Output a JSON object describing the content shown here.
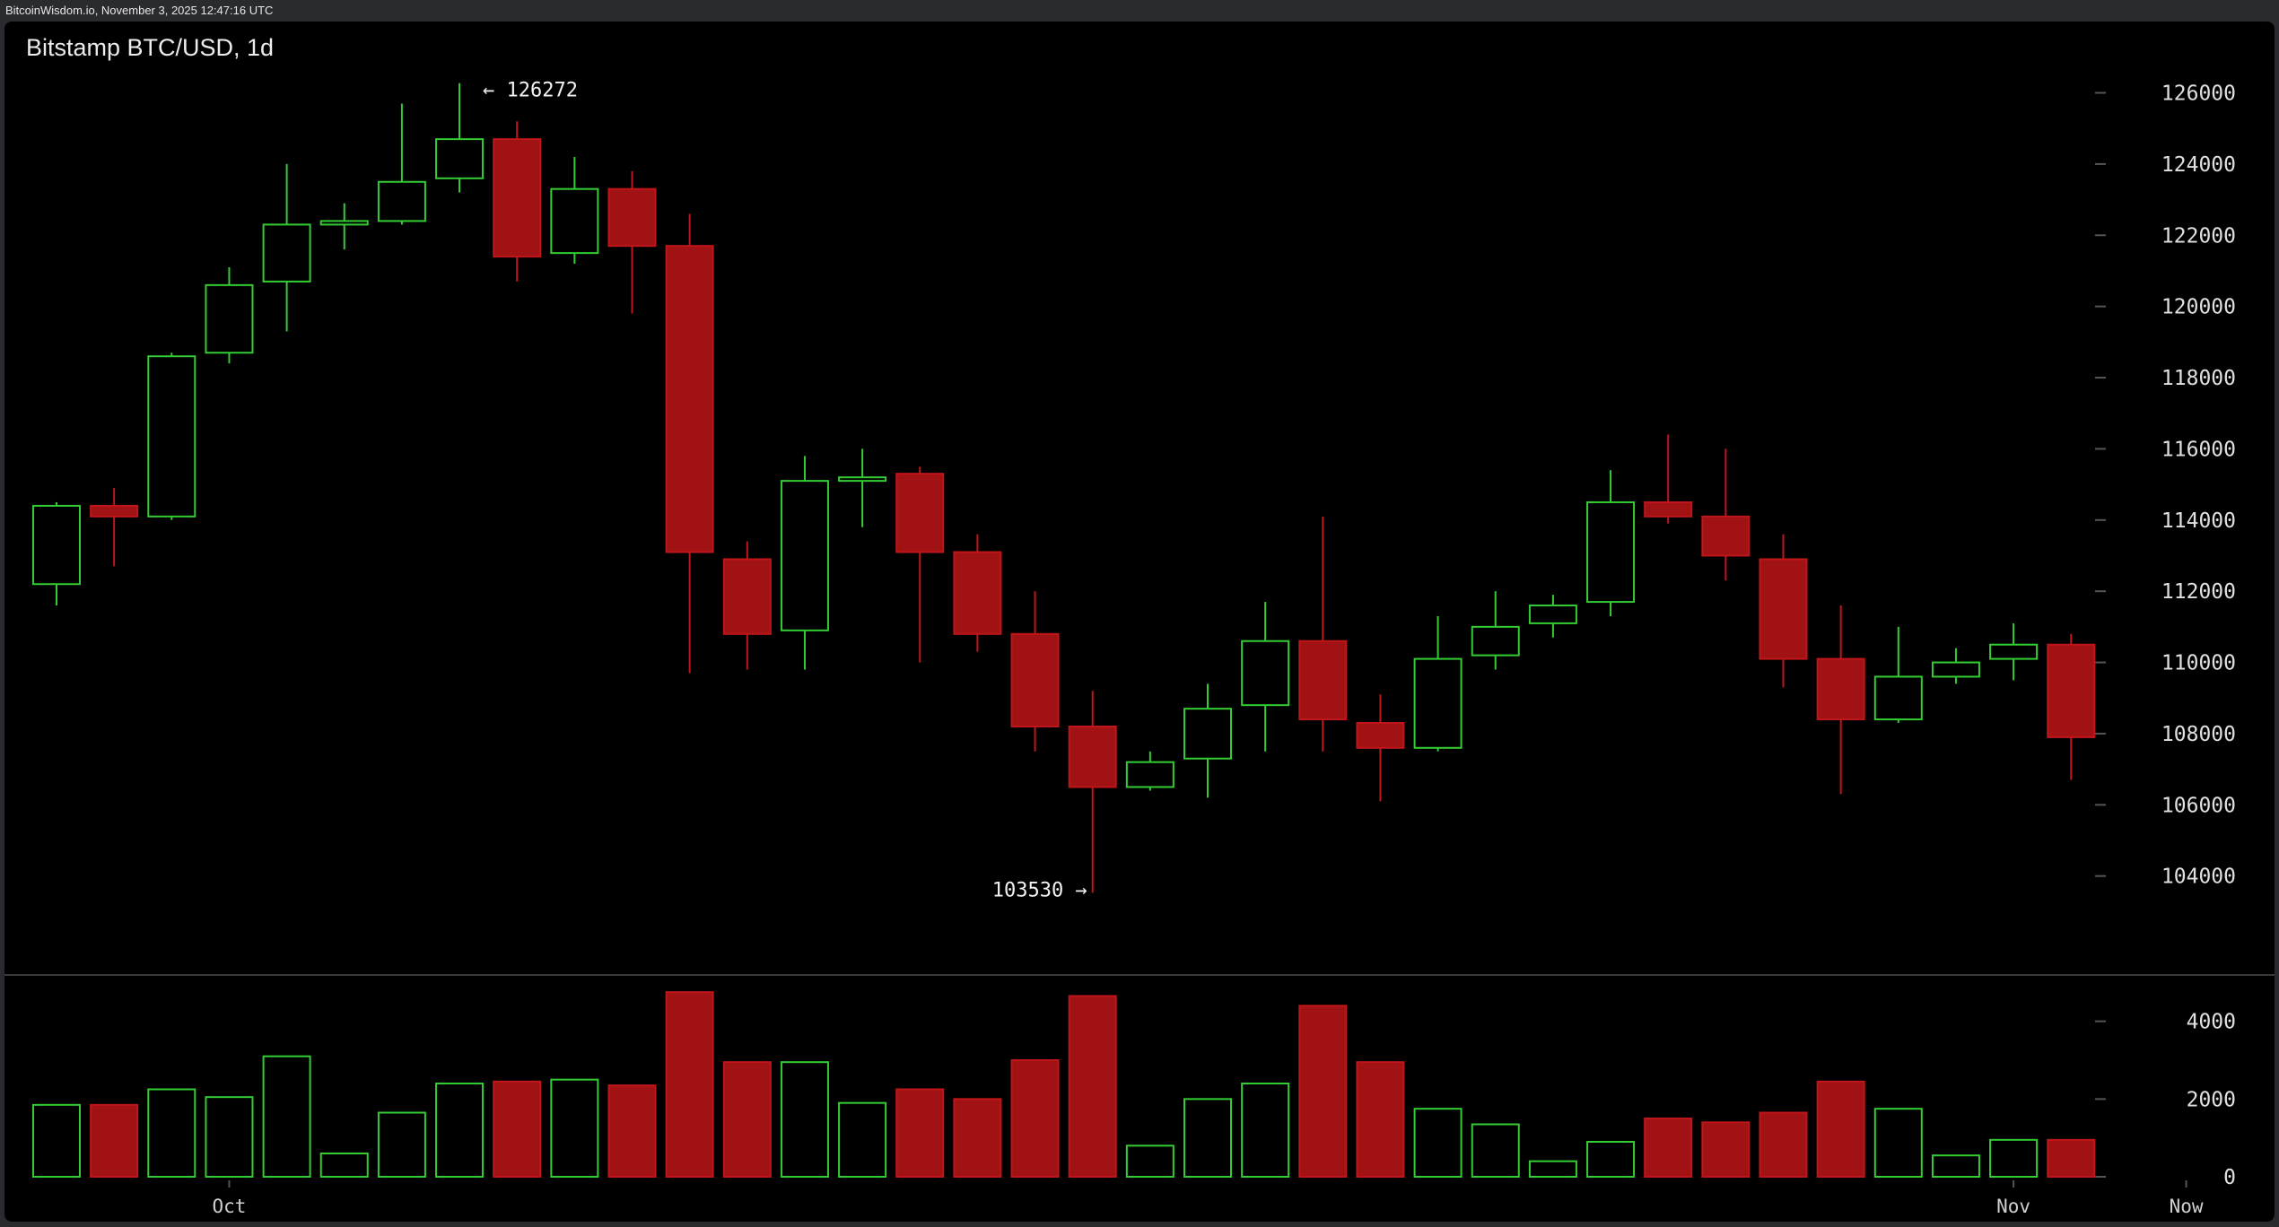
{
  "site_bar": {
    "text": "BitcoinWisdom.io, November 3, 2025 12:47:16 UTC"
  },
  "colors": {
    "up": "#33cc33",
    "down": "#c0161a",
    "down_fill": "#a01214",
    "background": "#000000",
    "grid_tick": "#555555"
  },
  "chart_data": {
    "type": "candlestick",
    "title": "Bitstamp BTC/USD, 1d",
    "price_axis": {
      "ticks": [
        104000,
        106000,
        108000,
        110000,
        112000,
        114000,
        116000,
        118000,
        120000,
        122000,
        124000,
        126000
      ],
      "ylim": [
        101800,
        127500
      ]
    },
    "volume_axis": {
      "ticks": [
        0,
        2000,
        4000
      ],
      "ylim": [
        0,
        4800
      ]
    },
    "x_ticks": [
      {
        "label": "Oct",
        "index": 3
      },
      {
        "label": "Nov",
        "index": 34
      },
      {
        "label": "Now",
        "index": 37
      }
    ],
    "annotations": {
      "high": {
        "text": "← 126272",
        "value": 126272,
        "index": 7
      },
      "low": {
        "text": "103530 →",
        "value": 103530,
        "index": 18
      }
    },
    "candles": [
      {
        "o": 112200,
        "h": 114500,
        "l": 111600,
        "c": 114400,
        "v": 1850
      },
      {
        "o": 114400,
        "h": 114900,
        "l": 112700,
        "c": 114100,
        "v": 1850
      },
      {
        "o": 114100,
        "h": 118700,
        "l": 114000,
        "c": 118600,
        "v": 2250
      },
      {
        "o": 118700,
        "h": 121100,
        "l": 118400,
        "c": 120600,
        "v": 2050
      },
      {
        "o": 120700,
        "h": 124000,
        "l": 119300,
        "c": 122300,
        "v": 3100
      },
      {
        "o": 122300,
        "h": 122900,
        "l": 121600,
        "c": 122400,
        "v": 600
      },
      {
        "o": 122400,
        "h": 125700,
        "l": 122300,
        "c": 123500,
        "v": 1650
      },
      {
        "o": 123600,
        "h": 126272,
        "l": 123200,
        "c": 124700,
        "v": 2400
      },
      {
        "o": 124700,
        "h": 125200,
        "l": 120700,
        "c": 121400,
        "v": 2450
      },
      {
        "o": 121500,
        "h": 124200,
        "l": 121200,
        "c": 123300,
        "v": 2500
      },
      {
        "o": 123300,
        "h": 123800,
        "l": 119800,
        "c": 121700,
        "v": 2350
      },
      {
        "o": 121700,
        "h": 122600,
        "l": 109700,
        "c": 113100,
        "v": 4750
      },
      {
        "o": 112900,
        "h": 113400,
        "l": 109800,
        "c": 110800,
        "v": 2950
      },
      {
        "o": 110900,
        "h": 115800,
        "l": 109800,
        "c": 115100,
        "v": 2950
      },
      {
        "o": 115100,
        "h": 116000,
        "l": 113800,
        "c": 115200,
        "v": 1900
      },
      {
        "o": 115300,
        "h": 115500,
        "l": 110000,
        "c": 113100,
        "v": 2250
      },
      {
        "o": 113100,
        "h": 113600,
        "l": 110300,
        "c": 110800,
        "v": 2000
      },
      {
        "o": 110800,
        "h": 112000,
        "l": 107500,
        "c": 108200,
        "v": 3000
      },
      {
        "o": 108200,
        "h": 109200,
        "l": 103530,
        "c": 106500,
        "v": 4650
      },
      {
        "o": 106500,
        "h": 107500,
        "l": 106400,
        "c": 107200,
        "v": 800
      },
      {
        "o": 107300,
        "h": 109400,
        "l": 106200,
        "c": 108700,
        "v": 2000
      },
      {
        "o": 108800,
        "h": 111700,
        "l": 107500,
        "c": 110600,
        "v": 2400
      },
      {
        "o": 110600,
        "h": 114100,
        "l": 107500,
        "c": 108400,
        "v": 4400
      },
      {
        "o": 108300,
        "h": 109100,
        "l": 106100,
        "c": 107600,
        "v": 2950
      },
      {
        "o": 107600,
        "h": 111300,
        "l": 107500,
        "c": 110100,
        "v": 1750
      },
      {
        "o": 110200,
        "h": 112000,
        "l": 109800,
        "c": 111000,
        "v": 1350
      },
      {
        "o": 111100,
        "h": 111900,
        "l": 110700,
        "c": 111600,
        "v": 400
      },
      {
        "o": 111700,
        "h": 115400,
        "l": 111300,
        "c": 114500,
        "v": 900
      },
      {
        "o": 114500,
        "h": 116400,
        "l": 113900,
        "c": 114100,
        "v": 1500
      },
      {
        "o": 114100,
        "h": 116000,
        "l": 112300,
        "c": 113000,
        "v": 1400
      },
      {
        "o": 112900,
        "h": 113600,
        "l": 109300,
        "c": 110100,
        "v": 1650
      },
      {
        "o": 110100,
        "h": 111600,
        "l": 106300,
        "c": 108400,
        "v": 2450
      },
      {
        "o": 108400,
        "h": 111000,
        "l": 108300,
        "c": 109600,
        "v": 1750
      },
      {
        "o": 109600,
        "h": 110400,
        "l": 109400,
        "c": 110000,
        "v": 550
      },
      {
        "o": 110100,
        "h": 111100,
        "l": 109500,
        "c": 110500,
        "v": 950
      },
      {
        "o": 110500,
        "h": 110800,
        "l": 106700,
        "c": 107900,
        "v": 950
      }
    ]
  }
}
